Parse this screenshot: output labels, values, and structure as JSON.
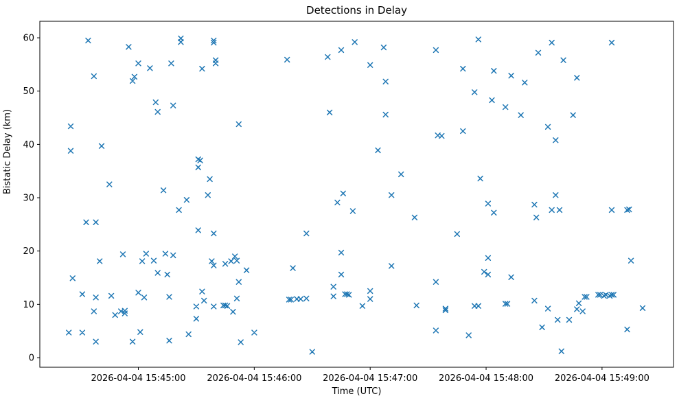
{
  "figure": {
    "title": "Detections in Delay",
    "background_color": "#ffffff",
    "text_color": "#000000"
  },
  "chart_data": {
    "type": "scatter",
    "title": "Detections in Delay",
    "xlabel": "Time (UTC)",
    "ylabel": "Bistatic Delay (km)",
    "date": "2026-04-04",
    "marker": "x",
    "marker_color": "#1f77b4",
    "grid": false,
    "legend": null,
    "x_ticks": [
      {
        "time": "15:45:00",
        "label": "2026-04-04 15:45:00"
      },
      {
        "time": "15:46:00",
        "label": "2026-04-04 15:46:00"
      },
      {
        "time": "15:47:00",
        "label": "2026-04-04 15:47:00"
      },
      {
        "time": "15:48:00",
        "label": "2026-04-04 15:48:00"
      },
      {
        "time": "15:49:00",
        "label": "2026-04-04 15:49:00"
      }
    ],
    "y_ticks": [
      0,
      10,
      20,
      30,
      40,
      50,
      60
    ],
    "xlim_times": [
      "15:44:09",
      "15:49:37"
    ],
    "ylim": [
      -1.8,
      63.1
    ],
    "points": [
      [
        "15:44:34",
        59.5
      ],
      [
        "15:44:55",
        58.3
      ],
      [
        "15:45:22",
        59.9
      ],
      [
        "15:45:22",
        59.2
      ],
      [
        "15:45:00",
        55.2
      ],
      [
        "15:45:06",
        54.3
      ],
      [
        "15:45:17",
        55.2
      ],
      [
        "15:44:37",
        52.8
      ],
      [
        "15:44:58",
        52.7
      ],
      [
        "15:44:57",
        51.9
      ],
      [
        "15:45:09",
        47.9
      ],
      [
        "15:45:10",
        46.1
      ],
      [
        "15:45:18",
        47.3
      ],
      [
        "15:44:25",
        43.4
      ],
      [
        "15:44:41",
        39.7
      ],
      [
        "15:44:25",
        38.8
      ],
      [
        "15:44:45",
        32.5
      ],
      [
        "15:45:13",
        31.4
      ],
      [
        "15:45:25",
        29.6
      ],
      [
        "15:45:21",
        27.7
      ],
      [
        "15:44:33",
        25.4
      ],
      [
        "15:44:38",
        25.4
      ],
      [
        "15:44:52",
        19.4
      ],
      [
        "15:45:04",
        19.5
      ],
      [
        "15:45:14",
        19.5
      ],
      [
        "15:45:18",
        19.2
      ],
      [
        "15:44:40",
        18.1
      ],
      [
        "15:45:02",
        18.1
      ],
      [
        "15:45:08",
        18.2
      ],
      [
        "15:45:10",
        15.9
      ],
      [
        "15:45:15",
        15.6
      ],
      [
        "15:44:26",
        14.9
      ],
      [
        "15:44:31",
        11.9
      ],
      [
        "15:44:38",
        11.3
      ],
      [
        "15:44:46",
        11.6
      ],
      [
        "15:45:00",
        12.2
      ],
      [
        "15:45:03",
        11.3
      ],
      [
        "15:45:16",
        11.4
      ],
      [
        "15:44:37",
        8.7
      ],
      [
        "15:44:48",
        8.0
      ],
      [
        "15:44:51",
        8.7
      ],
      [
        "15:44:53",
        8.8
      ],
      [
        "15:44:53",
        8.3
      ],
      [
        "15:44:24",
        4.7
      ],
      [
        "15:44:31",
        4.7
      ],
      [
        "15:44:38",
        3.0
      ],
      [
        "15:44:57",
        3.0
      ],
      [
        "15:45:01",
        4.8
      ],
      [
        "15:45:16",
        3.2
      ],
      [
        "15:45:26",
        4.4
      ],
      [
        "15:45:39",
        59.5
      ],
      [
        "15:45:39",
        59.1
      ],
      [
        "15:45:40",
        55.8
      ],
      [
        "15:45:40",
        55.2
      ],
      [
        "15:45:33",
        54.2
      ],
      [
        "15:46:17",
        55.9
      ],
      [
        "15:46:38",
        56.4
      ],
      [
        "15:46:45",
        57.7
      ],
      [
        "15:46:52",
        59.2
      ],
      [
        "15:45:52",
        43.8
      ],
      [
        "15:46:39",
        46.0
      ],
      [
        "15:45:31",
        37.2
      ],
      [
        "15:45:32",
        37.0
      ],
      [
        "15:45:31",
        35.7
      ],
      [
        "15:45:37",
        33.5
      ],
      [
        "15:45:36",
        30.5
      ],
      [
        "15:46:46",
        30.8
      ],
      [
        "15:46:43",
        29.1
      ],
      [
        "15:46:51",
        27.5
      ],
      [
        "15:45:31",
        23.9
      ],
      [
        "15:45:39",
        23.3
      ],
      [
        "15:46:27",
        23.3
      ],
      [
        "15:46:45",
        19.7
      ],
      [
        "15:45:38",
        18.1
      ],
      [
        "15:45:39",
        17.3
      ],
      [
        "15:45:45",
        17.6
      ],
      [
        "15:45:48",
        18.1
      ],
      [
        "15:45:50",
        19.0
      ],
      [
        "15:45:51",
        18.2
      ],
      [
        "15:45:56",
        16.4
      ],
      [
        "15:46:20",
        16.8
      ],
      [
        "15:46:45",
        15.6
      ],
      [
        "15:45:52",
        14.2
      ],
      [
        "15:45:33",
        12.4
      ],
      [
        "15:46:41",
        13.3
      ],
      [
        "15:46:41",
        11.5
      ],
      [
        "15:46:47",
        11.9
      ],
      [
        "15:46:48",
        11.9
      ],
      [
        "15:46:49",
        11.8
      ],
      [
        "15:45:34",
        10.7
      ],
      [
        "15:45:51",
        11.1
      ],
      [
        "15:46:18",
        10.9
      ],
      [
        "15:46:19",
        10.9
      ],
      [
        "15:46:22",
        11.0
      ],
      [
        "15:46:24",
        11.0
      ],
      [
        "15:46:27",
        11.1
      ],
      [
        "15:45:39",
        9.6
      ],
      [
        "15:45:44",
        9.8
      ],
      [
        "15:45:45",
        9.8
      ],
      [
        "15:45:46",
        9.7
      ],
      [
        "15:45:30",
        9.6
      ],
      [
        "15:45:49",
        8.6
      ],
      [
        "15:45:30",
        7.3
      ],
      [
        "15:46:00",
        4.7
      ],
      [
        "15:45:53",
        2.9
      ],
      [
        "15:46:30",
        1.1
      ],
      [
        "15:47:07",
        58.2
      ],
      [
        "15:47:34",
        57.7
      ],
      [
        "15:47:56",
        59.7
      ],
      [
        "15:47:00",
        54.9
      ],
      [
        "15:47:48",
        54.2
      ],
      [
        "15:48:04",
        53.8
      ],
      [
        "15:48:13",
        52.9
      ],
      [
        "15:47:08",
        51.8
      ],
      [
        "15:47:54",
        49.8
      ],
      [
        "15:48:03",
        48.3
      ],
      [
        "15:48:10",
        47.0
      ],
      [
        "15:47:08",
        45.6
      ],
      [
        "15:47:48",
        42.5
      ],
      [
        "15:47:35",
        41.7
      ],
      [
        "15:47:37",
        41.6
      ],
      [
        "15:47:04",
        38.9
      ],
      [
        "15:47:16",
        34.4
      ],
      [
        "15:47:57",
        33.6
      ],
      [
        "15:47:11",
        30.5
      ],
      [
        "15:48:01",
        28.9
      ],
      [
        "15:48:04",
        27.2
      ],
      [
        "15:47:23",
        26.3
      ],
      [
        "15:47:45",
        23.2
      ],
      [
        "15:48:01",
        18.7
      ],
      [
        "15:47:11",
        17.2
      ],
      [
        "15:47:59",
        16.1
      ],
      [
        "15:48:01",
        15.6
      ],
      [
        "15:48:13",
        15.1
      ],
      [
        "15:47:34",
        14.2
      ],
      [
        "15:47:00",
        12.5
      ],
      [
        "15:47:00",
        11.0
      ],
      [
        "15:46:56",
        9.7
      ],
      [
        "15:47:24",
        9.8
      ],
      [
        "15:47:39",
        9.2
      ],
      [
        "15:47:39",
        8.9
      ],
      [
        "15:47:54",
        9.7
      ],
      [
        "15:47:56",
        9.7
      ],
      [
        "15:48:10",
        10.1
      ],
      [
        "15:48:11",
        10.1
      ],
      [
        "15:47:34",
        5.1
      ],
      [
        "15:47:51",
        4.2
      ],
      [
        "15:48:34",
        59.1
      ],
      [
        "15:49:05",
        59.1
      ],
      [
        "15:48:27",
        57.2
      ],
      [
        "15:48:40",
        55.8
      ],
      [
        "15:48:20",
        51.6
      ],
      [
        "15:48:47",
        52.5
      ],
      [
        "15:48:18",
        45.5
      ],
      [
        "15:48:45",
        45.5
      ],
      [
        "15:48:32",
        43.3
      ],
      [
        "15:48:36",
        40.8
      ],
      [
        "15:48:36",
        30.5
      ],
      [
        "15:48:25",
        28.7
      ],
      [
        "15:48:34",
        27.7
      ],
      [
        "15:48:38",
        27.7
      ],
      [
        "15:48:26",
        26.3
      ],
      [
        "15:49:05",
        27.7
      ],
      [
        "15:49:13",
        27.7
      ],
      [
        "15:49:14",
        27.8
      ],
      [
        "15:49:15",
        18.2
      ],
      [
        "15:48:51",
        11.4
      ],
      [
        "15:48:52",
        11.4
      ],
      [
        "15:48:58",
        11.8
      ],
      [
        "15:48:59",
        11.8
      ],
      [
        "15:49:01",
        11.6
      ],
      [
        "15:49:02",
        11.8
      ],
      [
        "15:49:04",
        11.6
      ],
      [
        "15:49:05",
        11.8
      ],
      [
        "15:49:06",
        11.8
      ],
      [
        "15:48:25",
        10.7
      ],
      [
        "15:48:32",
        9.2
      ],
      [
        "15:48:48",
        10.2
      ],
      [
        "15:48:47",
        9.1
      ],
      [
        "15:48:50",
        8.7
      ],
      [
        "15:49:21",
        9.3
      ],
      [
        "15:48:37",
        7.1
      ],
      [
        "15:48:43",
        7.1
      ],
      [
        "15:48:29",
        5.7
      ],
      [
        "15:49:13",
        5.3
      ],
      [
        "15:48:39",
        1.2
      ]
    ]
  }
}
